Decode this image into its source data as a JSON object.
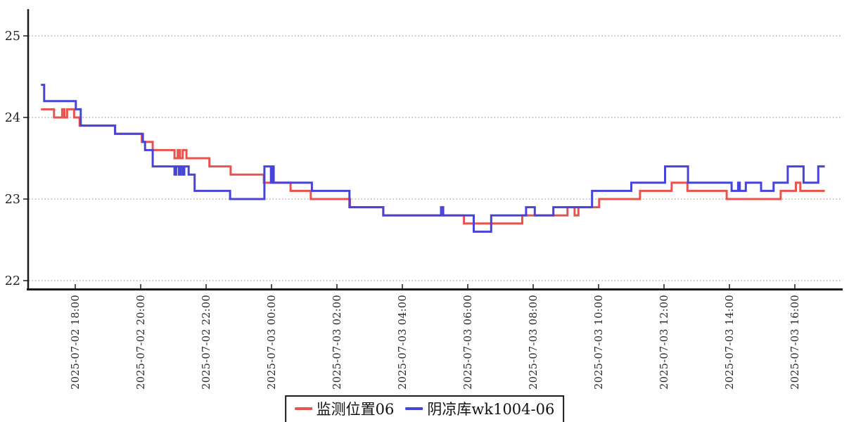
{
  "page": {
    "background": "#ffffff"
  },
  "style": {
    "axis_color": "#1a1a1a",
    "grid_color": "#8a8a8a",
    "tick_label_color": "#2b2b2b"
  },
  "chart_data": {
    "type": "line",
    "step": "after",
    "title": "",
    "grid": true,
    "legend_position": "bottom-center",
    "x_axis": {
      "type": "time",
      "range_start": "2025-07-02 16:34",
      "range_end": "2025-07-03 17:26",
      "ticks": [
        "2025-07-02 18:00",
        "2025-07-02 20:00",
        "2025-07-02 22:00",
        "2025-07-03 00:00",
        "2025-07-03 02:00",
        "2025-07-03 04:00",
        "2025-07-03 06:00",
        "2025-07-03 08:00",
        "2025-07-03 10:00",
        "2025-07-03 12:00",
        "2025-07-03 14:00",
        "2025-07-03 16:00"
      ]
    },
    "y_axis": {
      "min": 21.9,
      "max": 25.3,
      "ticks": [
        22,
        23,
        24,
        25
      ]
    },
    "series": [
      {
        "name": "监测位置06",
        "color": "#e8534e",
        "points": [
          [
            "2025-07-02 16:57",
            24.1
          ],
          [
            "2025-07-02 17:21",
            24.0
          ],
          [
            "2025-07-02 17:36",
            24.1
          ],
          [
            "2025-07-02 17:40",
            24.0
          ],
          [
            "2025-07-02 17:45",
            24.1
          ],
          [
            "2025-07-02 17:58",
            24.0
          ],
          [
            "2025-07-02 18:08",
            23.9
          ],
          [
            "2025-07-02 19:13",
            23.8
          ],
          [
            "2025-07-02 20:02",
            23.7
          ],
          [
            "2025-07-02 20:22",
            23.6
          ],
          [
            "2025-07-02 21:02",
            23.5
          ],
          [
            "2025-07-02 21:08",
            23.6
          ],
          [
            "2025-07-02 21:12",
            23.5
          ],
          [
            "2025-07-02 21:17",
            23.6
          ],
          [
            "2025-07-02 21:24",
            23.5
          ],
          [
            "2025-07-02 22:06",
            23.4
          ],
          [
            "2025-07-02 22:45",
            23.3
          ],
          [
            "2025-07-02 23:46",
            23.2
          ],
          [
            "2025-07-03 00:35",
            23.1
          ],
          [
            "2025-07-03 01:12",
            23.0
          ],
          [
            "2025-07-03 02:24",
            22.9
          ],
          [
            "2025-07-03 03:25",
            22.8
          ],
          [
            "2025-07-03 05:53",
            22.7
          ],
          [
            "2025-07-03 07:40",
            22.8
          ],
          [
            "2025-07-03 09:03",
            22.9
          ],
          [
            "2025-07-03 09:16",
            22.8
          ],
          [
            "2025-07-03 09:23",
            22.9
          ],
          [
            "2025-07-03 10:01",
            23.0
          ],
          [
            "2025-07-03 11:16",
            23.1
          ],
          [
            "2025-07-03 12:14",
            23.2
          ],
          [
            "2025-07-03 12:43",
            23.1
          ],
          [
            "2025-07-03 13:55",
            23.0
          ],
          [
            "2025-07-03 15:34",
            23.1
          ],
          [
            "2025-07-03 16:02",
            23.2
          ],
          [
            "2025-07-03 16:10",
            23.1
          ],
          [
            "2025-07-03 16:55",
            23.1
          ]
        ]
      },
      {
        "name": "阴凉库wk1004-06",
        "color": "#4744d9",
        "points": [
          [
            "2025-07-02 16:57",
            24.4
          ],
          [
            "2025-07-02 17:03",
            24.2
          ],
          [
            "2025-07-02 18:01",
            24.1
          ],
          [
            "2025-07-02 18:10",
            23.9
          ],
          [
            "2025-07-02 19:13",
            23.8
          ],
          [
            "2025-07-02 20:04",
            23.7
          ],
          [
            "2025-07-02 20:08",
            23.6
          ],
          [
            "2025-07-02 20:22",
            23.4
          ],
          [
            "2025-07-02 21:02",
            23.3
          ],
          [
            "2025-07-02 21:05",
            23.4
          ],
          [
            "2025-07-02 21:10",
            23.3
          ],
          [
            "2025-07-02 21:13",
            23.4
          ],
          [
            "2025-07-02 21:17",
            23.3
          ],
          [
            "2025-07-02 21:20",
            23.4
          ],
          [
            "2025-07-02 21:28",
            23.3
          ],
          [
            "2025-07-02 21:39",
            23.1
          ],
          [
            "2025-07-02 22:44",
            23.0
          ],
          [
            "2025-07-02 23:47",
            23.4
          ],
          [
            "2025-07-02 23:59",
            23.2
          ],
          [
            "2025-07-03 00:01",
            23.4
          ],
          [
            "2025-07-03 00:04",
            23.2
          ],
          [
            "2025-07-03 01:14",
            23.1
          ],
          [
            "2025-07-03 02:23",
            22.9
          ],
          [
            "2025-07-03 03:25",
            22.8
          ],
          [
            "2025-07-03 05:11",
            22.9
          ],
          [
            "2025-07-03 05:15",
            22.8
          ],
          [
            "2025-07-03 06:11",
            22.6
          ],
          [
            "2025-07-03 06:43",
            22.8
          ],
          [
            "2025-07-03 07:47",
            22.9
          ],
          [
            "2025-07-03 08:03",
            22.8
          ],
          [
            "2025-07-03 08:37",
            22.9
          ],
          [
            "2025-07-03 09:48",
            23.1
          ],
          [
            "2025-07-03 11:00",
            23.2
          ],
          [
            "2025-07-03 12:02",
            23.4
          ],
          [
            "2025-07-03 12:44",
            23.2
          ],
          [
            "2025-07-03 14:04",
            23.1
          ],
          [
            "2025-07-03 14:16",
            23.2
          ],
          [
            "2025-07-03 14:19",
            23.1
          ],
          [
            "2025-07-03 14:30",
            23.2
          ],
          [
            "2025-07-03 14:58",
            23.1
          ],
          [
            "2025-07-03 15:21",
            23.2
          ],
          [
            "2025-07-03 15:47",
            23.4
          ],
          [
            "2025-07-03 16:16",
            23.2
          ],
          [
            "2025-07-03 16:43",
            23.4
          ],
          [
            "2025-07-03 16:55",
            23.4
          ]
        ]
      }
    ]
  }
}
